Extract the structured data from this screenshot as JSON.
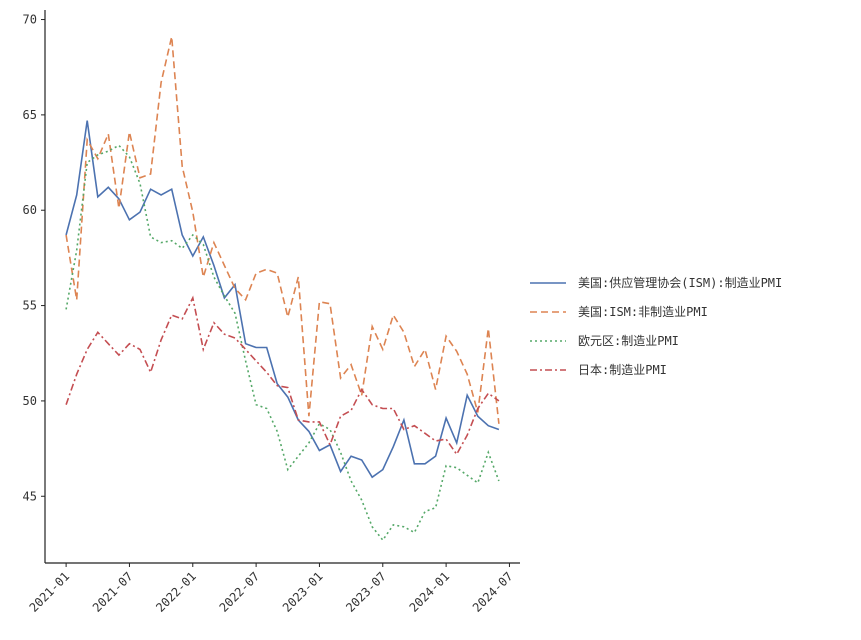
{
  "chart_data": {
    "type": "line",
    "x": [
      "2021-01",
      "2021-02",
      "2021-03",
      "2021-04",
      "2021-05",
      "2021-06",
      "2021-07",
      "2021-08",
      "2021-09",
      "2021-10",
      "2021-11",
      "2021-12",
      "2022-01",
      "2022-02",
      "2022-03",
      "2022-04",
      "2022-05",
      "2022-06",
      "2022-07",
      "2022-08",
      "2022-09",
      "2022-10",
      "2022-11",
      "2022-12",
      "2023-01",
      "2023-02",
      "2023-03",
      "2023-04",
      "2023-05",
      "2023-06",
      "2023-07",
      "2023-08",
      "2023-09",
      "2023-10",
      "2023-11",
      "2023-12",
      "2024-01",
      "2024-02",
      "2024-03",
      "2024-04",
      "2024-05",
      "2024-06"
    ],
    "xlim": [
      "2020-11",
      "2024-08"
    ],
    "xticks": [
      "2021-01",
      "2021-07",
      "2022-01",
      "2022-07",
      "2023-01",
      "2023-07",
      "2024-01",
      "2024-07"
    ],
    "ylim": [
      41.5,
      70.5
    ],
    "yticks": [
      45,
      50,
      55,
      60,
      65,
      70
    ],
    "grid": false,
    "legend": "right",
    "series": [
      {
        "name": "美国:供应管理协会(ISM):制造业PMI",
        "color": "#4c72b0",
        "style": "solid",
        "values": [
          58.7,
          60.8,
          64.7,
          60.7,
          61.2,
          60.6,
          59.5,
          59.9,
          61.1,
          60.8,
          61.1,
          58.7,
          57.6,
          58.6,
          57.1,
          55.4,
          56.1,
          53.0,
          52.8,
          52.8,
          50.9,
          50.2,
          49.0,
          48.4,
          47.4,
          47.7,
          46.3,
          47.1,
          46.9,
          46.0,
          46.4,
          47.6,
          49.0,
          46.7,
          46.7,
          47.1,
          49.1,
          47.8,
          50.3,
          49.2,
          48.7,
          48.5
        ]
      },
      {
        "name": "美国:ISM:非制造业PMI",
        "color": "#dd8452",
        "style": "dashed",
        "values": [
          58.7,
          55.3,
          63.7,
          62.7,
          64.0,
          60.1,
          64.1,
          61.7,
          61.9,
          66.7,
          69.1,
          62.3,
          59.9,
          56.5,
          58.3,
          57.1,
          55.9,
          55.3,
          56.7,
          56.9,
          56.7,
          54.4,
          56.5,
          49.2,
          55.2,
          55.1,
          51.2,
          51.9,
          50.3,
          53.9,
          52.7,
          54.5,
          53.6,
          51.8,
          52.7,
          50.6,
          53.4,
          52.6,
          51.4,
          49.4,
          53.8,
          48.8
        ]
      },
      {
        "name": "欧元区:制造业PMI",
        "color": "#55a868",
        "style": "dotted",
        "values": [
          54.8,
          57.9,
          62.5,
          62.9,
          63.1,
          63.4,
          62.8,
          61.4,
          58.6,
          58.3,
          58.4,
          58.0,
          58.7,
          58.2,
          56.5,
          55.5,
          54.6,
          52.1,
          49.8,
          49.6,
          48.4,
          46.4,
          47.1,
          47.8,
          48.8,
          48.5,
          47.3,
          45.8,
          44.8,
          43.4,
          42.7,
          43.5,
          43.4,
          43.1,
          44.2,
          44.4,
          46.6,
          46.5,
          46.1,
          45.7,
          47.3,
          45.8
        ]
      },
      {
        "name": "日本:制造业PMI",
        "color": "#c44e52",
        "style": "dashdot",
        "values": [
          49.8,
          51.4,
          52.7,
          53.6,
          53.0,
          52.4,
          53.0,
          52.7,
          51.5,
          53.2,
          54.5,
          54.3,
          55.4,
          52.7,
          54.1,
          53.5,
          53.3,
          52.7,
          52.1,
          51.5,
          50.8,
          50.7,
          49.0,
          48.9,
          48.9,
          47.7,
          49.2,
          49.5,
          50.6,
          49.8,
          49.6,
          49.6,
          48.5,
          48.7,
          48.3,
          47.9,
          48.0,
          47.2,
          48.2,
          49.6,
          50.4,
          50.0
        ]
      }
    ]
  }
}
